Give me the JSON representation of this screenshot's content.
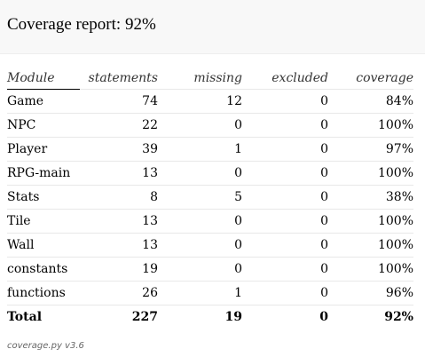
{
  "header": {
    "title": "Coverage report: 92%"
  },
  "table": {
    "columns": [
      "Module",
      "statements",
      "missing",
      "excluded",
      "coverage"
    ],
    "rows": [
      [
        "Game",
        "74",
        "12",
        "0",
        "84%"
      ],
      [
        "NPC",
        "22",
        "0",
        "0",
        "100%"
      ],
      [
        "Player",
        "39",
        "1",
        "0",
        "97%"
      ],
      [
        "RPG-main",
        "13",
        "0",
        "0",
        "100%"
      ],
      [
        "Stats",
        "8",
        "5",
        "0",
        "38%"
      ],
      [
        "Tile",
        "13",
        "0",
        "0",
        "100%"
      ],
      [
        "Wall",
        "13",
        "0",
        "0",
        "100%"
      ],
      [
        "constants",
        "19",
        "0",
        "0",
        "100%"
      ],
      [
        "functions",
        "26",
        "1",
        "0",
        "96%"
      ]
    ],
    "total": [
      "Total",
      "227",
      "19",
      "0",
      "92%"
    ]
  },
  "footer": {
    "text": "coverage.py v3.6"
  }
}
